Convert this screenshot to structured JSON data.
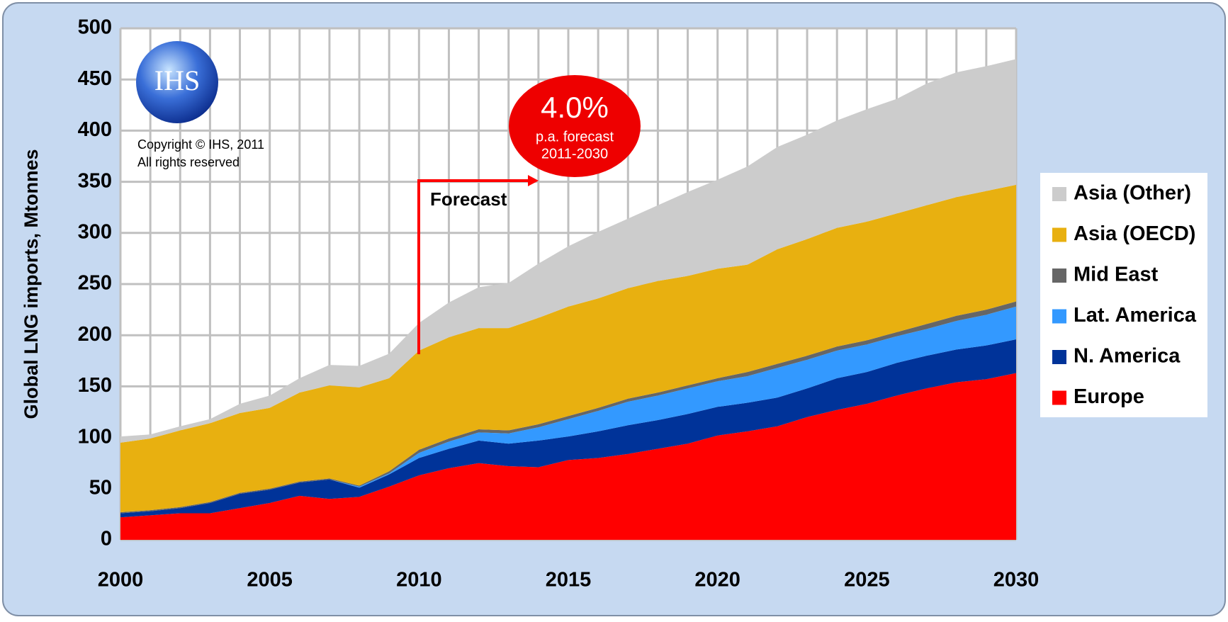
{
  "chart_data": {
    "type": "stacked-area",
    "y_label": "Global LNG imports, Mtonnes",
    "x": [
      2000,
      2001,
      2002,
      2003,
      2004,
      2005,
      2006,
      2007,
      2008,
      2009,
      2010,
      2011,
      2012,
      2013,
      2014,
      2015,
      2016,
      2017,
      2018,
      2019,
      2020,
      2021,
      2022,
      2023,
      2024,
      2025,
      2026,
      2027,
      2028,
      2029,
      2030
    ],
    "series": [
      {
        "name": "Europe",
        "color": "#ff0000",
        "values": [
          22,
          24,
          26,
          26,
          31,
          36,
          43,
          40,
          42,
          52,
          63,
          70,
          75,
          72,
          71,
          78,
          80,
          84,
          89,
          94,
          102,
          106,
          111,
          120,
          127,
          133,
          141,
          148,
          154,
          157,
          163
        ]
      },
      {
        "name": "N. America",
        "color": "#003399",
        "values": [
          4,
          4,
          5,
          10,
          14,
          13,
          13,
          19,
          9,
          12,
          17,
          19,
          22,
          22,
          26,
          23,
          26,
          28,
          28,
          29,
          28,
          28,
          28,
          28,
          31,
          31,
          32,
          32,
          32,
          33,
          33
        ]
      },
      {
        "name": "Lat. America",
        "color": "#3399ff",
        "values": [
          0,
          0,
          0,
          0,
          0,
          0,
          0,
          0,
          1,
          1,
          5,
          7,
          8,
          10,
          13,
          17,
          20,
          23,
          24,
          25,
          25,
          26,
          29,
          28,
          27,
          27,
          26,
          26,
          28,
          30,
          32
        ]
      },
      {
        "name": "Mid East",
        "color": "#666666",
        "values": [
          1,
          1,
          1,
          1,
          1,
          1,
          1,
          1,
          1,
          2,
          3,
          3,
          3,
          3,
          3,
          3,
          3,
          3,
          3,
          3,
          3,
          4,
          4,
          4,
          4,
          4,
          4,
          5,
          5,
          5,
          5
        ]
      },
      {
        "name": "Asia (OECD)",
        "color": "#e8b010",
        "values": [
          68,
          70,
          75,
          77,
          78,
          79,
          87,
          91,
          96,
          91,
          97,
          99,
          99,
          100,
          104,
          107,
          107,
          108,
          109,
          107,
          107,
          105,
          112,
          114,
          116,
          116,
          116,
          116,
          116,
          116,
          114
        ]
      },
      {
        "name": "Asia (Other)",
        "color": "#cccccc",
        "values": [
          6,
          4,
          4,
          4,
          9,
          12,
          14,
          20,
          21,
          24,
          27,
          34,
          40,
          44,
          53,
          59,
          65,
          68,
          74,
          82,
          87,
          96,
          100,
          102,
          105,
          110,
          112,
          119,
          122,
          122,
          123
        ]
      }
    ],
    "xlim": [
      2000,
      2030
    ],
    "xticks": [
      2000,
      2005,
      2010,
      2015,
      2020,
      2025,
      2030
    ],
    "ylim": [
      0,
      500
    ],
    "yticks": [
      0,
      50,
      100,
      150,
      200,
      250,
      300,
      350,
      400,
      450,
      500
    ],
    "grid": true,
    "legend": "right",
    "annotations": {
      "forecast": "Forecast",
      "rate": "4.0%",
      "rate_note": "p.a. forecast",
      "rate_period": "2011-2030",
      "logo": "IHS",
      "copyright": "Copyright © IHS, 2011",
      "rights": "All rights reserved"
    }
  }
}
